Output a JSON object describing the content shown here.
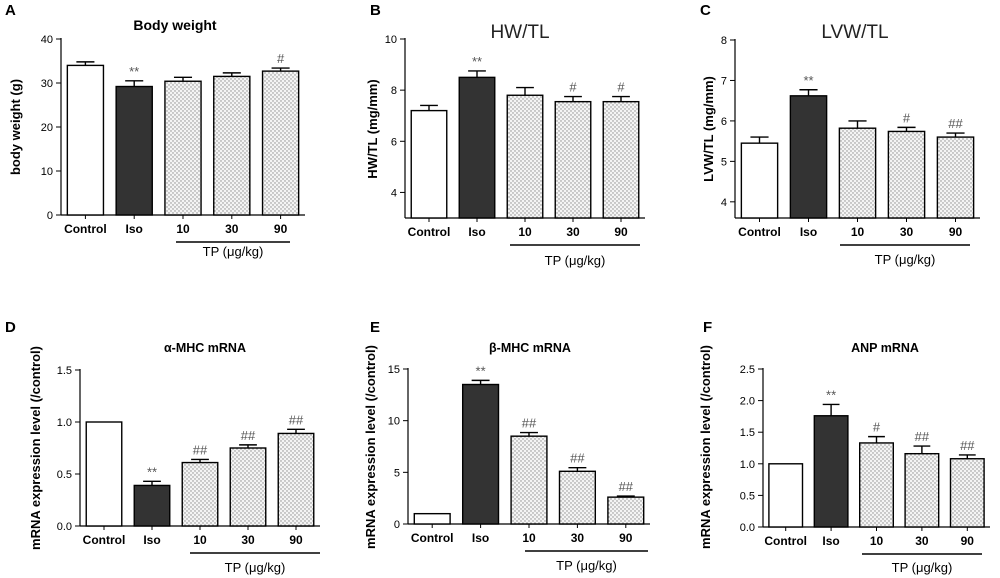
{
  "figure": {
    "tp_group_label": "TP (μg/kg)",
    "bar_colors": {
      "control": "#ffffff",
      "iso": "#333333",
      "tp": "dotted-light-gray"
    }
  },
  "chart_data": [
    {
      "panel": "A",
      "type": "bar",
      "title": "Body weight",
      "title_style": "bold",
      "ylabel": "body weight (g)",
      "categories": [
        "Control",
        "Iso",
        "10",
        "30",
        "90"
      ],
      "values": [
        34.0,
        29.2,
        30.4,
        31.5,
        32.7
      ],
      "errors": [
        0.8,
        1.3,
        0.9,
        0.8,
        0.7
      ],
      "annotations": [
        "",
        "**",
        "",
        "",
        "#"
      ],
      "ylim": [
        0,
        40
      ],
      "yticks": [
        0,
        10,
        20,
        30,
        40
      ]
    },
    {
      "panel": "B",
      "type": "bar",
      "title": "HW/TL",
      "title_style": "plain",
      "ylabel": "HW/TL (mg/mm)",
      "categories": [
        "Control",
        "Iso",
        "10",
        "30",
        "90"
      ],
      "values": [
        7.2,
        8.5,
        7.8,
        7.55,
        7.55
      ],
      "errors": [
        0.2,
        0.25,
        0.3,
        0.2,
        0.2
      ],
      "annotations": [
        "",
        "**",
        "",
        "#",
        "#"
      ],
      "ylim": [
        3,
        10
      ],
      "yticks": [
        4,
        6,
        8,
        10
      ]
    },
    {
      "panel": "C",
      "type": "bar",
      "title": "LVW/TL",
      "title_style": "plain",
      "ylabel": "LVW/TL (mg/mm)",
      "categories": [
        "Control",
        "Iso",
        "10",
        "30",
        "90"
      ],
      "values": [
        5.45,
        6.62,
        5.82,
        5.74,
        5.6
      ],
      "errors": [
        0.15,
        0.15,
        0.18,
        0.1,
        0.1
      ],
      "annotations": [
        "",
        "**",
        "",
        "#",
        "##"
      ],
      "ylim": [
        3.6,
        8
      ],
      "yticks": [
        4,
        5,
        6,
        7,
        8
      ]
    },
    {
      "panel": "D",
      "type": "bar",
      "title": "α-MHC mRNA",
      "title_style": "bold",
      "ylabel": "mRNA expression level (/control)",
      "categories": [
        "Control",
        "Iso",
        "10",
        "30",
        "90"
      ],
      "values": [
        1.0,
        0.39,
        0.61,
        0.75,
        0.89
      ],
      "errors": [
        0,
        0.04,
        0.03,
        0.03,
        0.04
      ],
      "annotations": [
        "",
        "**",
        "##",
        "##",
        "##"
      ],
      "ylim": [
        0,
        1.5
      ],
      "yticks": [
        0.0,
        0.5,
        1.0,
        1.5
      ]
    },
    {
      "panel": "E",
      "type": "bar",
      "title": "β-MHC mRNA",
      "title_style": "bold",
      "ylabel": "mRNA expression level (/control)",
      "categories": [
        "Control",
        "Iso",
        "10",
        "30",
        "90"
      ],
      "values": [
        1.0,
        13.5,
        8.5,
        5.1,
        2.6
      ],
      "errors": [
        0,
        0.4,
        0.35,
        0.35,
        0.1
      ],
      "annotations": [
        "",
        "**",
        "##",
        "##",
        "##"
      ],
      "ylim": [
        0,
        15
      ],
      "yticks": [
        0,
        5,
        10,
        15
      ]
    },
    {
      "panel": "F",
      "type": "bar",
      "title": "ANP mRNA",
      "title_style": "bold",
      "ylabel": "mRNA expression level (/control)",
      "categories": [
        "Control",
        "Iso",
        "10",
        "30",
        "90"
      ],
      "values": [
        1.0,
        1.76,
        1.33,
        1.16,
        1.08
      ],
      "errors": [
        0,
        0.18,
        0.1,
        0.12,
        0.06
      ],
      "annotations": [
        "",
        "**",
        "#",
        "##",
        "##"
      ],
      "ylim": [
        0,
        2.5
      ],
      "yticks": [
        0.0,
        0.5,
        1.0,
        1.5,
        2.0,
        2.5
      ]
    }
  ]
}
